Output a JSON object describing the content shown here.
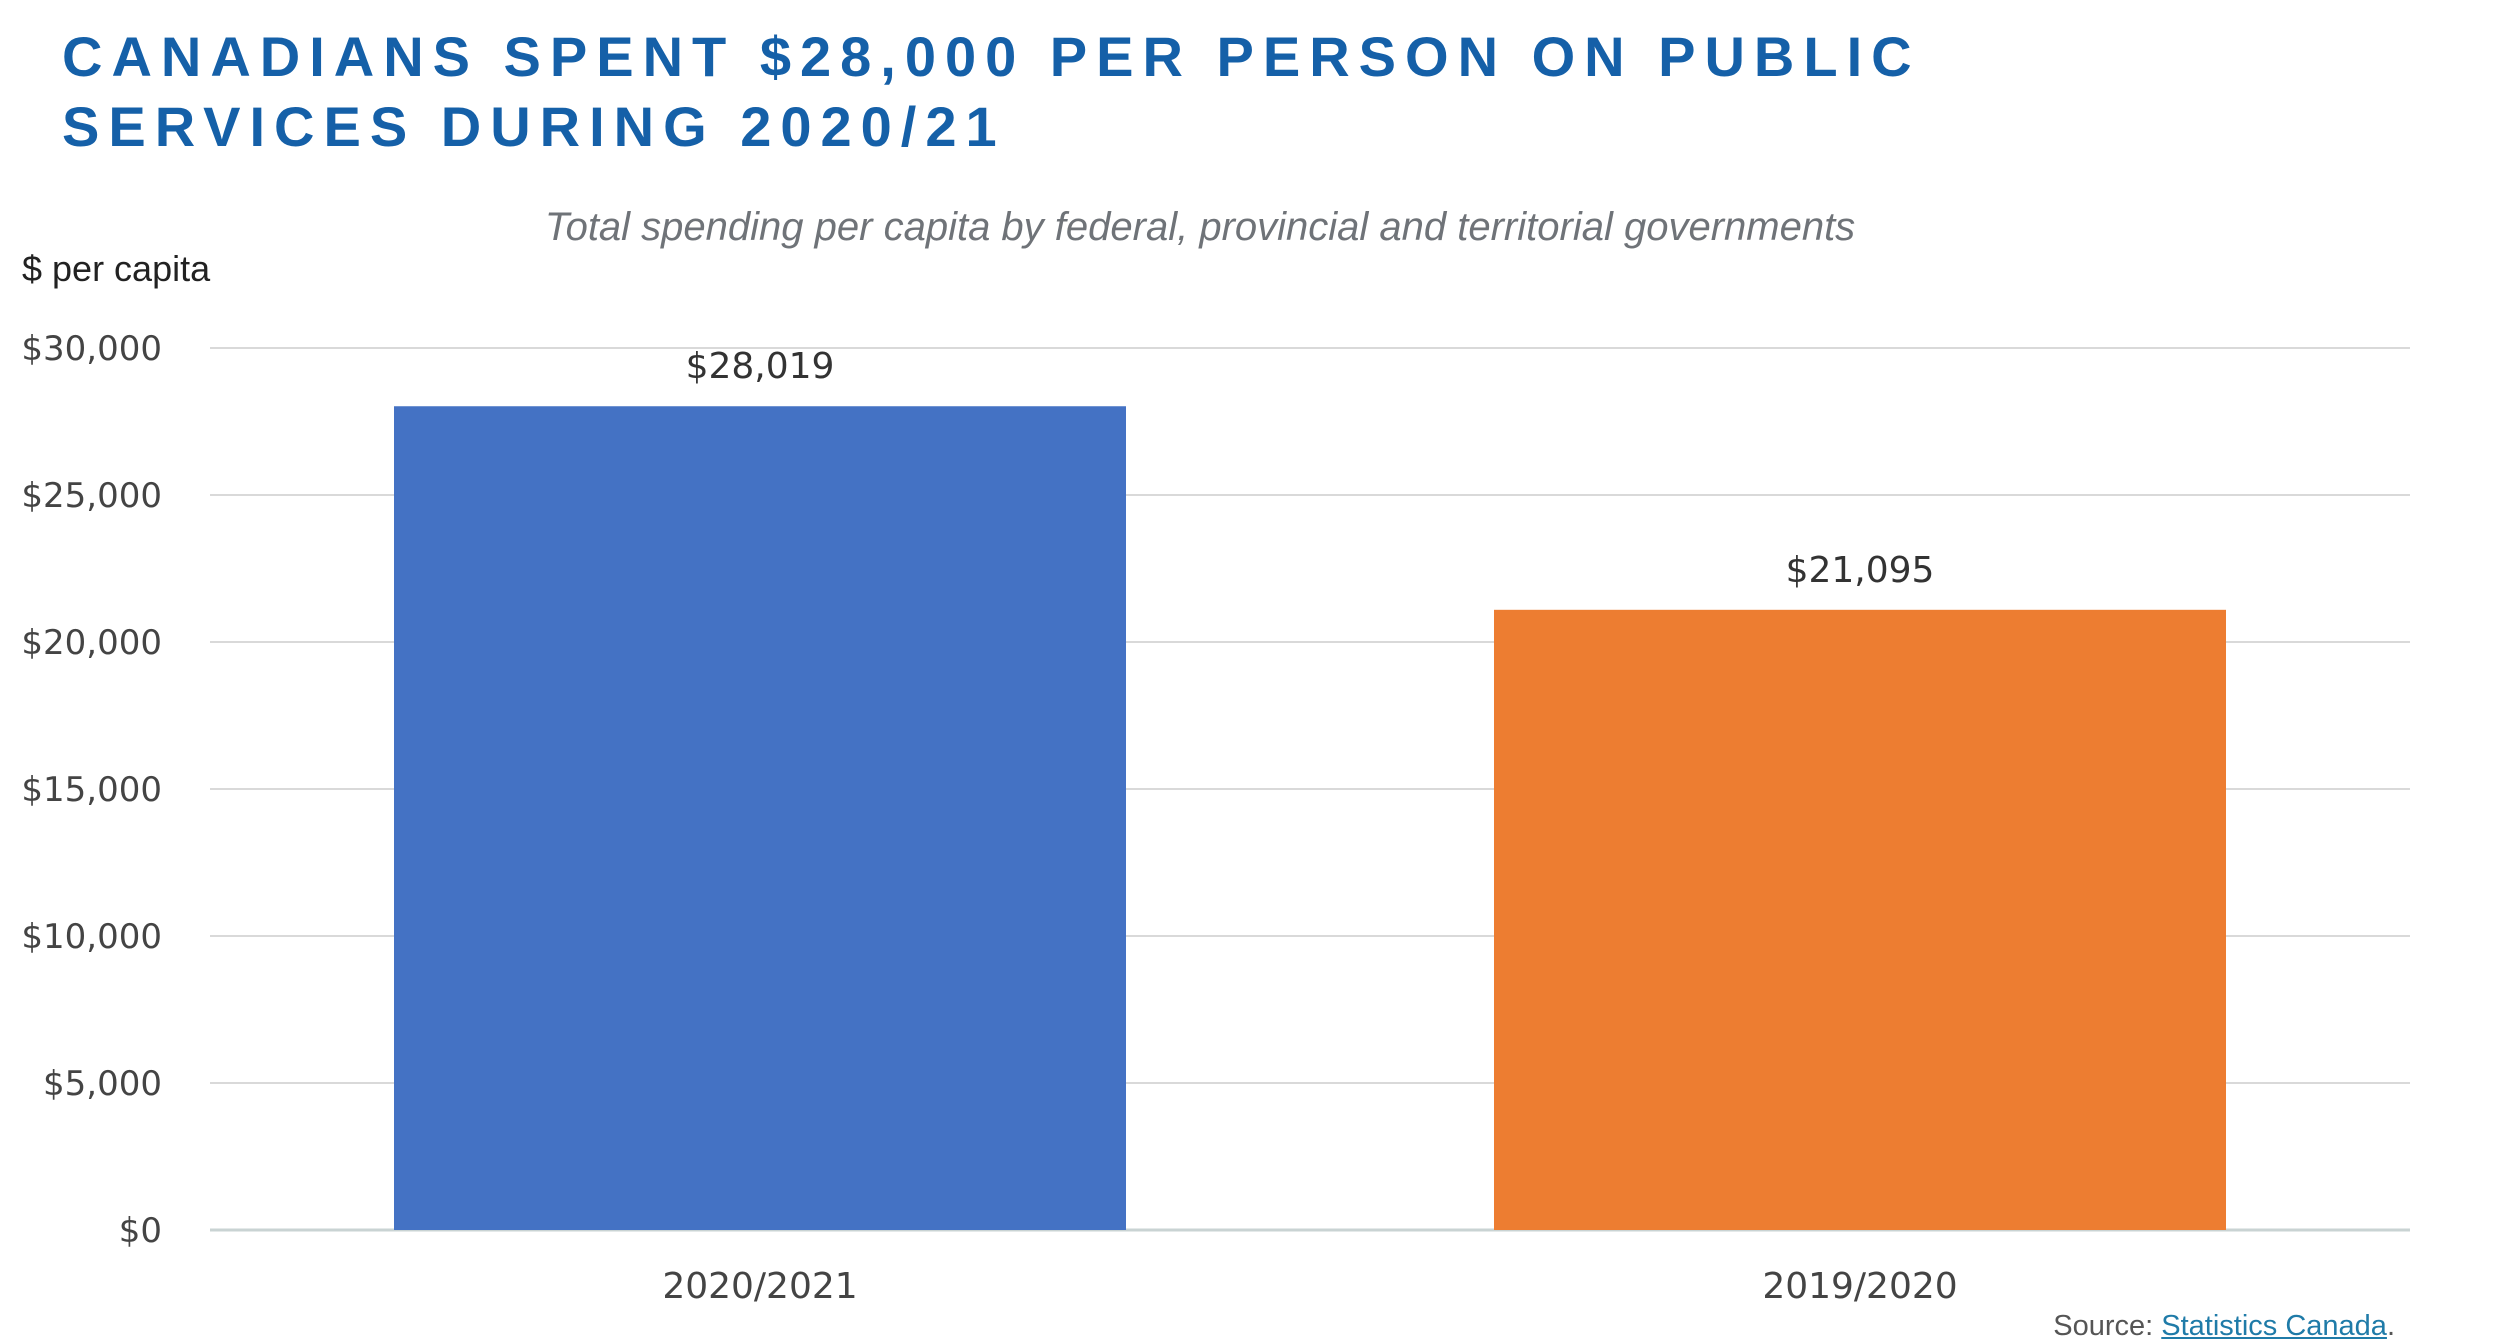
{
  "title_lines": [
    "CANADIANS SPENT $28,000 PER PERSON ON PUBLIC",
    "SERVICES DURING 2020/21"
  ],
  "colors": {
    "title": "#1560a8",
    "bar_1": "#4472c4",
    "bar_2": "#ed7d31",
    "grid": "#d9d9d9"
  },
  "source": {
    "prefix": "Source: ",
    "link_text": "Statistics Canada",
    "suffix": "."
  },
  "chart_data": {
    "type": "bar",
    "title": "",
    "subtitle": "Total spending per capita by federal, provincial and territorial governments",
    "ylabel": "$ per capita",
    "xlabel": "",
    "categories": [
      "2020/2021",
      "2019/2020"
    ],
    "values": [
      28019,
      21095
    ],
    "data_labels": [
      "$28,019",
      "$21,095"
    ],
    "ylim": [
      0,
      30000
    ],
    "yticks": [
      0,
      5000,
      10000,
      15000,
      20000,
      25000,
      30000
    ],
    "ytick_labels": [
      "$0",
      "$5,000",
      "$10,000",
      "$15,000",
      "$20,000",
      "$25,000",
      "$30,000"
    ],
    "grid": true,
    "legend": "none"
  }
}
